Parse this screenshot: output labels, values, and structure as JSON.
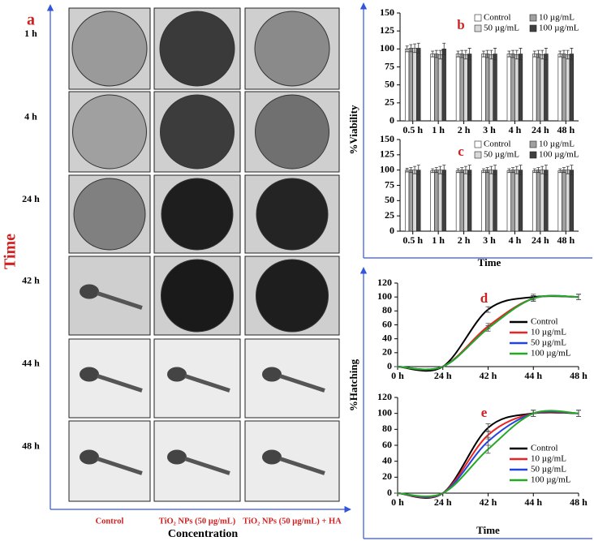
{
  "panel_a": {
    "label": "a",
    "y_label": "Time",
    "x_label": "Concentration",
    "rows": [
      "1 h",
      "4 h",
      "24 h",
      "42 h",
      "44 h",
      "48 h"
    ],
    "columns": [
      "Control",
      "TiO₂ NPs (50 µg/mL)",
      "TiO₂ NPs (50 µg/mL) + HA"
    ]
  },
  "chart_data": [
    {
      "type": "bar",
      "label": "b",
      "y_label": "%Viability",
      "categories": [
        "0.5 h",
        "1 h",
        "2 h",
        "3 h",
        "4 h",
        "24 h",
        "48 h"
      ],
      "series": [
        {
          "name": "Control",
          "color": "#ffffff",
          "values": [
            100,
            93,
            93,
            93,
            93,
            93,
            93
          ],
          "errors": [
            4,
            4,
            4,
            4,
            4,
            4,
            4
          ]
        },
        {
          "name": "10 µg/mL",
          "color": "#a0a0a0",
          "values": [
            101,
            93,
            93,
            93,
            93,
            93,
            93
          ],
          "errors": [
            5,
            5,
            5,
            5,
            5,
            5,
            5
          ]
        },
        {
          "name": "50 µg/mL",
          "color": "#d8d8d8",
          "values": [
            101,
            92,
            92,
            92,
            92,
            92,
            92
          ],
          "errors": [
            6,
            6,
            6,
            6,
            6,
            6,
            6
          ]
        },
        {
          "name": "100 µg/mL",
          "color": "#404040",
          "values": [
            101,
            100,
            93,
            93,
            93,
            93,
            93
          ],
          "errors": [
            7,
            8,
            8,
            8,
            8,
            8,
            8
          ]
        }
      ],
      "ylim": [
        0,
        150
      ],
      "yticks": [
        0,
        25,
        50,
        75,
        100,
        125,
        150
      ]
    },
    {
      "type": "bar",
      "label": "c",
      "x_label": "Time",
      "categories": [
        "0.5 h",
        "1 h",
        "2 h",
        "3 h",
        "4 h",
        "24 h",
        "48 h"
      ],
      "series": [
        {
          "name": "Control",
          "color": "#ffffff",
          "values": [
            100,
            99,
            99,
            99,
            99,
            99,
            99
          ],
          "errors": [
            3,
            3,
            3,
            3,
            3,
            3,
            3
          ]
        },
        {
          "name": "10 µg/mL",
          "color": "#a0a0a0",
          "values": [
            100,
            100,
            100,
            100,
            100,
            100,
            100
          ],
          "errors": [
            4,
            4,
            4,
            4,
            4,
            4,
            4
          ]
        },
        {
          "name": "50 µg/mL",
          "color": "#d8d8d8",
          "values": [
            100,
            100,
            100,
            100,
            100,
            100,
            100
          ],
          "errors": [
            6,
            6,
            6,
            6,
            6,
            6,
            6
          ]
        },
        {
          "name": "100 µg/mL",
          "color": "#404040",
          "values": [
            100,
            100,
            100,
            100,
            100,
            100,
            100
          ],
          "errors": [
            8,
            8,
            8,
            8,
            8,
            8,
            8
          ]
        }
      ],
      "ylim": [
        0,
        150
      ],
      "yticks": [
        0,
        25,
        50,
        75,
        100,
        125,
        150
      ]
    },
    {
      "type": "line",
      "label": "d",
      "y_label": "%Hatching",
      "categories": [
        "0 h",
        "24 h",
        "42 h",
        "44 h",
        "48 h"
      ],
      "series": [
        {
          "name": "Control",
          "color": "#000000",
          "values": [
            0,
            0,
            82,
            100,
            100
          ],
          "errors": [
            0,
            0,
            4,
            4,
            4
          ]
        },
        {
          "name": "10 µg/mL",
          "color": "#ee2222",
          "values": [
            0,
            0,
            58,
            98,
            100
          ],
          "errors": [
            0,
            0,
            4,
            4,
            4
          ]
        },
        {
          "name": "50 µg/mL",
          "color": "#2244dd",
          "values": [
            0,
            0,
            55,
            98,
            100
          ],
          "errors": [
            0,
            0,
            4,
            4,
            4
          ]
        },
        {
          "name": "100 µg/mL",
          "color": "#22aa22",
          "values": [
            0,
            0,
            55,
            98,
            100
          ],
          "errors": [
            0,
            0,
            4,
            4,
            4
          ]
        }
      ],
      "ylim": [
        0,
        120
      ],
      "yticks": [
        0,
        20,
        40,
        60,
        80,
        100,
        120
      ]
    },
    {
      "type": "line",
      "label": "e",
      "x_label": "Time",
      "categories": [
        "0 h",
        "24 h",
        "42 h",
        "44 h",
        "48 h"
      ],
      "series": [
        {
          "name": "Control",
          "color": "#000000",
          "values": [
            0,
            0,
            82,
            100,
            100
          ],
          "errors": [
            0,
            0,
            5,
            4,
            4
          ]
        },
        {
          "name": "10 µg/mL",
          "color": "#ee2222",
          "values": [
            0,
            0,
            73,
            100,
            100
          ],
          "errors": [
            0,
            0,
            5,
            4,
            4
          ]
        },
        {
          "name": "50 µg/mL",
          "color": "#2244dd",
          "values": [
            0,
            0,
            65,
            100,
            100
          ],
          "errors": [
            0,
            0,
            5,
            4,
            4
          ]
        },
        {
          "name": "100 µg/mL",
          "color": "#22aa22",
          "values": [
            0,
            0,
            55,
            100,
            100
          ],
          "errors": [
            0,
            0,
            5,
            4,
            4
          ]
        }
      ],
      "ylim": [
        0,
        120
      ],
      "yticks": [
        0,
        20,
        40,
        60,
        80,
        100,
        120
      ]
    }
  ]
}
